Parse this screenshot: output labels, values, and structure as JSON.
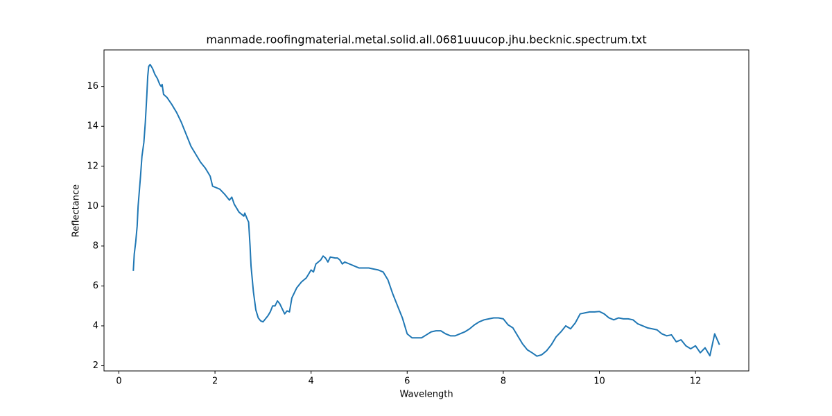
{
  "chart_data": {
    "type": "line",
    "title": "manmade.roofingmaterial.metal.solid.all.0681uuucop.jhu.becknic.spectrum.txt",
    "xlabel": "Wavelength",
    "ylabel": "Reflectance",
    "x": [
      0.3,
      0.32,
      0.35,
      0.38,
      0.4,
      0.45,
      0.48,
      0.52,
      0.55,
      0.58,
      0.6,
      0.62,
      0.65,
      0.7,
      0.75,
      0.8,
      0.85,
      0.88,
      0.9,
      0.93,
      1.0,
      1.1,
      1.2,
      1.3,
      1.4,
      1.5,
      1.6,
      1.7,
      1.8,
      1.9,
      1.95,
      2.0,
      2.1,
      2.2,
      2.3,
      2.35,
      2.4,
      2.5,
      2.6,
      2.62,
      2.68,
      2.7,
      2.73,
      2.75,
      2.8,
      2.85,
      2.9,
      2.95,
      3.0,
      3.05,
      3.1,
      3.15,
      3.2,
      3.25,
      3.3,
      3.35,
      3.4,
      3.45,
      3.5,
      3.55,
      3.6,
      3.7,
      3.8,
      3.9,
      3.95,
      4.0,
      4.05,
      4.1,
      4.2,
      4.25,
      4.3,
      4.35,
      4.4,
      4.5,
      4.55,
      4.6,
      4.65,
      4.7,
      4.8,
      4.9,
      5.0,
      5.1,
      5.2,
      5.3,
      5.4,
      5.5,
      5.6,
      5.7,
      5.8,
      5.9,
      6.0,
      6.1,
      6.2,
      6.3,
      6.4,
      6.5,
      6.6,
      6.7,
      6.8,
      6.9,
      7.0,
      7.1,
      7.2,
      7.3,
      7.4,
      7.5,
      7.6,
      7.7,
      7.8,
      7.9,
      8.0,
      8.1,
      8.2,
      8.3,
      8.4,
      8.5,
      8.6,
      8.7,
      8.8,
      8.9,
      9.0,
      9.1,
      9.2,
      9.3,
      9.4,
      9.5,
      9.6,
      9.7,
      9.8,
      9.9,
      10.0,
      10.1,
      10.2,
      10.3,
      10.4,
      10.5,
      10.6,
      10.7,
      10.8,
      10.9,
      11.0,
      11.1,
      11.2,
      11.3,
      11.4,
      11.5,
      11.6,
      11.7,
      11.8,
      11.9,
      12.0,
      12.1,
      12.2,
      12.3,
      12.4,
      12.5
    ],
    "values": [
      6.75,
      7.6,
      8.2,
      9.0,
      10.0,
      11.5,
      12.5,
      13.2,
      14.2,
      15.5,
      16.5,
      17.0,
      17.1,
      16.9,
      16.6,
      16.4,
      16.1,
      16.0,
      16.1,
      15.6,
      15.45,
      15.1,
      14.7,
      14.2,
      13.6,
      13.0,
      12.6,
      12.2,
      11.9,
      11.5,
      11.0,
      10.95,
      10.85,
      10.6,
      10.3,
      10.45,
      10.1,
      9.7,
      9.5,
      9.65,
      9.3,
      9.2,
      8.0,
      7.0,
      5.7,
      4.8,
      4.4,
      4.25,
      4.2,
      4.35,
      4.5,
      4.7,
      5.0,
      5.0,
      5.25,
      5.1,
      4.85,
      4.6,
      4.75,
      4.7,
      5.4,
      5.9,
      6.2,
      6.4,
      6.6,
      6.8,
      6.7,
      7.1,
      7.3,
      7.5,
      7.4,
      7.2,
      7.45,
      7.4,
      7.4,
      7.3,
      7.1,
      7.2,
      7.1,
      7.0,
      6.9,
      6.9,
      6.9,
      6.85,
      6.8,
      6.7,
      6.3,
      5.6,
      5.0,
      4.4,
      3.6,
      3.4,
      3.4,
      3.4,
      3.55,
      3.7,
      3.75,
      3.75,
      3.6,
      3.5,
      3.5,
      3.6,
      3.7,
      3.85,
      4.05,
      4.2,
      4.3,
      4.35,
      4.4,
      4.4,
      4.35,
      4.05,
      3.9,
      3.5,
      3.1,
      2.8,
      2.65,
      2.48,
      2.55,
      2.75,
      3.05,
      3.45,
      3.7,
      4.0,
      3.85,
      4.15,
      4.6,
      4.65,
      4.7,
      4.7,
      4.72,
      4.6,
      4.4,
      4.3,
      4.4,
      4.35,
      4.35,
      4.3,
      4.1,
      4.0,
      3.9,
      3.85,
      3.8,
      3.6,
      3.5,
      3.55,
      3.2,
      3.3,
      3.0,
      2.85,
      3.0,
      2.65,
      2.9,
      2.5,
      3.6,
      3.05
    ],
    "color": "#1f77b4",
    "xlim": [
      -0.31,
      13.11
    ],
    "xticks": [
      0,
      2,
      4,
      6,
      8,
      10,
      12
    ],
    "ylim": [
      1.74,
      17.83
    ],
    "yticks": [
      2,
      4,
      6,
      8,
      10,
      12,
      14,
      16
    ]
  }
}
